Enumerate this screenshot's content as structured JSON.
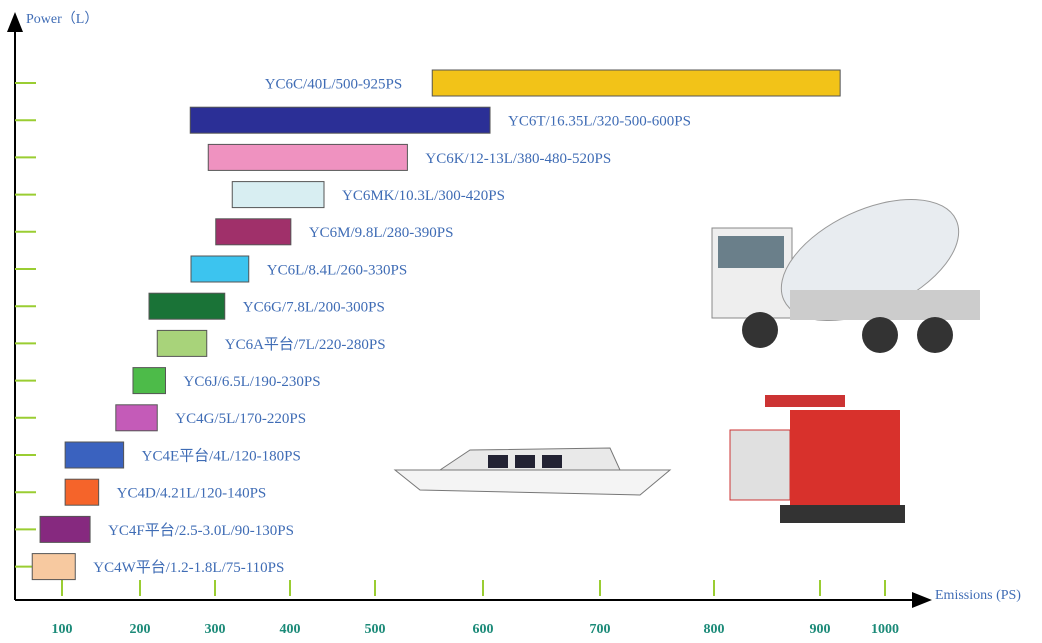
{
  "chart_data": {
    "type": "range_bar",
    "y_axis_label": "Power（L）",
    "x_axis_label": "Emissions (PS)",
    "categories": [
      "YC6C/40L/500-925PS",
      "YC6T/16.35L/320-500-600PS",
      "YC6K/12-13L/380-480-520PS",
      "YC6MK/10.3L/300-420PS",
      "YC6M/9.8L/280-390PS",
      "YC6L/8.4L/260-330PS",
      "YC6G/7.8L/200-300PS",
      "YC6A平台/7L/220-280PS",
      "YC6J/6.5L/190-230PS",
      "YC4G/5L/170-220PS",
      "YC4E平台/4L/120-180PS",
      "YC4D/4.21L/120-140PS",
      "YC4F平台/2.5-3.0L/90-130PS",
      "YC4W平台/1.2-1.8L/75-110PS"
    ],
    "starts": [
      553,
      267,
      291,
      323,
      301,
      268,
      212,
      223,
      191,
      169,
      104,
      104,
      72,
      62
    ],
    "ends": [
      931,
      606,
      530,
      440,
      401,
      345,
      313,
      289,
      234,
      223,
      179,
      147,
      136,
      117
    ],
    "colors": [
      "#f2c318",
      "#2b2f96",
      "#ef92c0",
      "#d8eef2",
      "#a0306a",
      "#3cc4ef",
      "#1a7337",
      "#a8d37a",
      "#4dbb49",
      "#c45bb8",
      "#3a62bf",
      "#f5642a",
      "#86297f",
      "#f7c9a0"
    ],
    "xlim": [
      40,
      1040
    ],
    "xticks": [
      100,
      200,
      300,
      400,
      500,
      600,
      700,
      800,
      900,
      1000
    ]
  }
}
